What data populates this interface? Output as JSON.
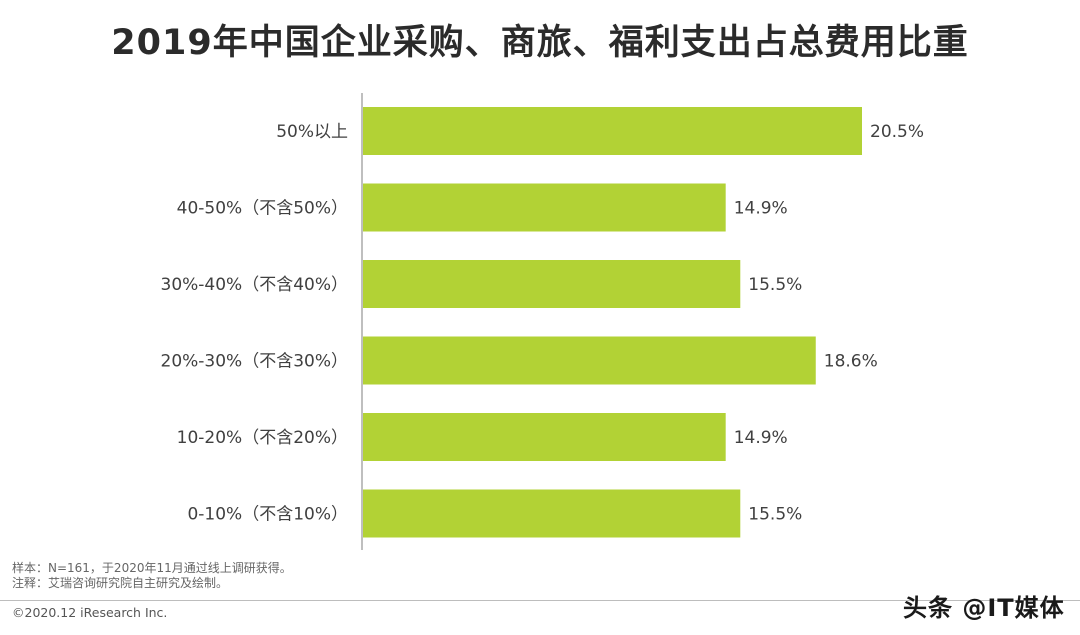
{
  "title": "2019年中国企业采购、商旅、福利支出占总费用比重",
  "notes": {
    "sample": "样本：N=161，于2020年11月通过线上调研获得。",
    "source": "注释：艾瑞咨询研究院自主研究及绘制。"
  },
  "copyright": "©2020.12 iResearch Inc.",
  "watermark": "头条 @IT媒体",
  "colors": {
    "bar": "#b2d235",
    "axis": "#7f7f7f",
    "label": "#404040"
  },
  "chart_data": {
    "type": "bar",
    "orientation": "horizontal",
    "categories": [
      "50%以上",
      "40-50%（不含50%）",
      "30%-40%（不含40%）",
      "20%-30%（不含30%）",
      "10-20%（不含20%）",
      "0-10%（不含10%）"
    ],
    "values": [
      20.5,
      14.9,
      15.5,
      18.6,
      14.9,
      15.5
    ],
    "value_labels": [
      "20.5%",
      "14.9%",
      "15.5%",
      "18.6%",
      "14.9%",
      "15.5%"
    ],
    "xlim": [
      0,
      20.5
    ],
    "grid": false,
    "legend": "none"
  }
}
